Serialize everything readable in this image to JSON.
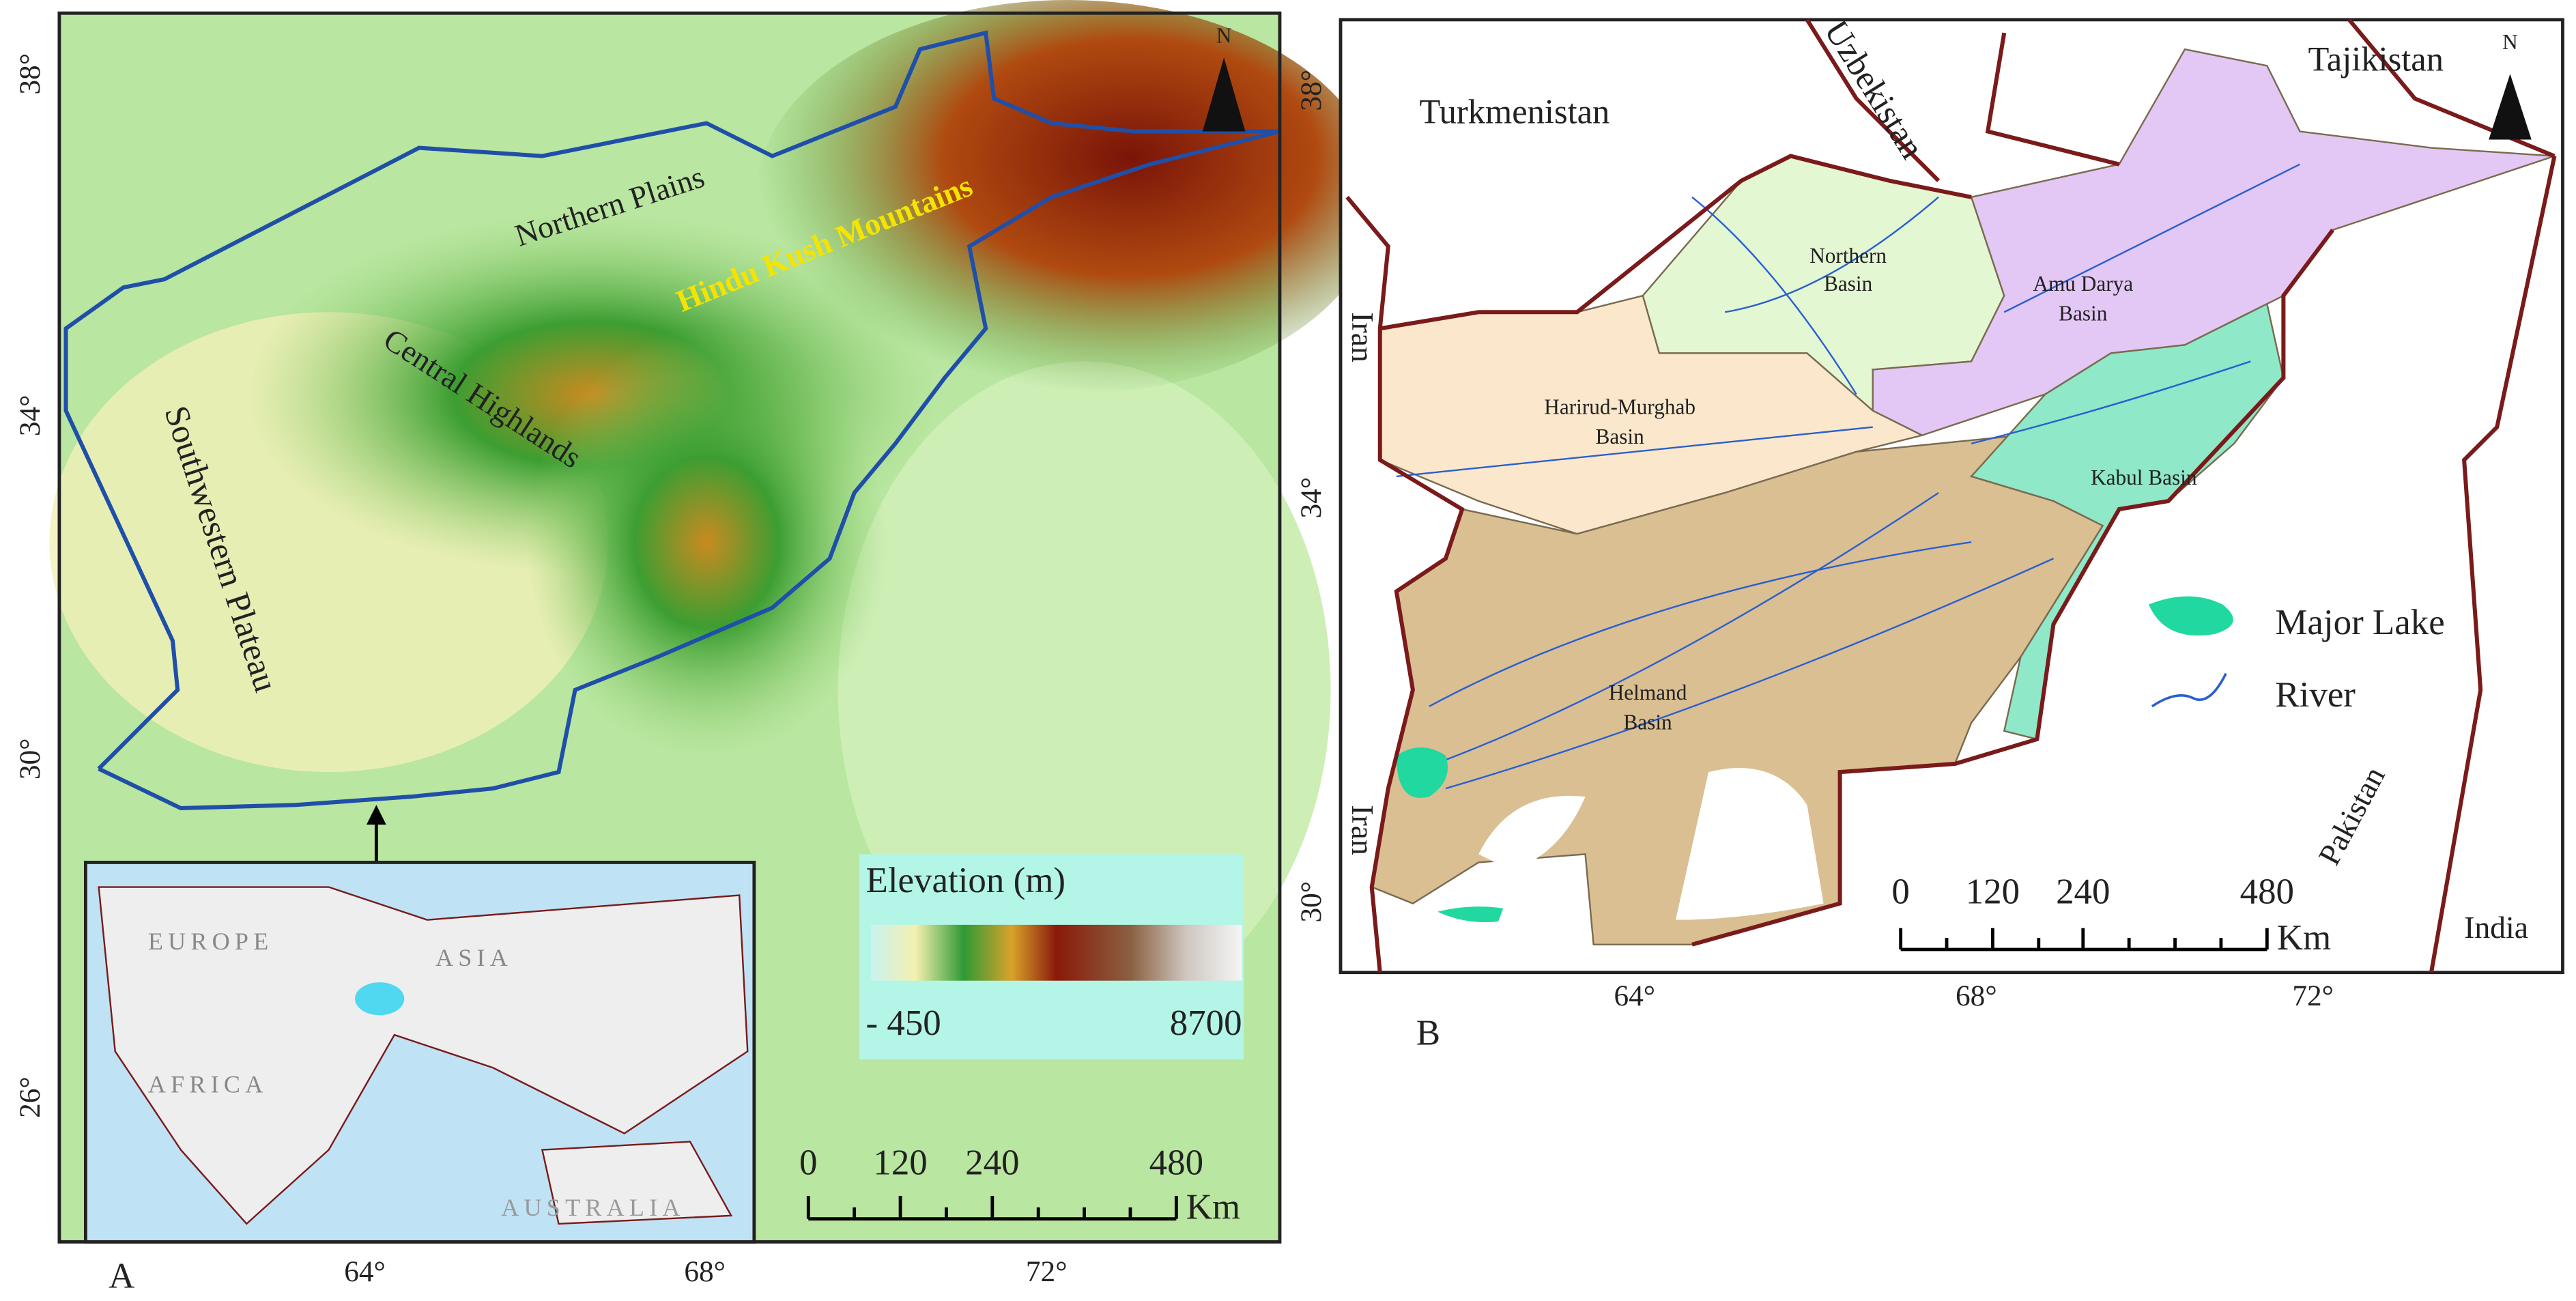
{
  "panel_a": {
    "label": "A",
    "lat_labels": [
      "38°",
      "34°",
      "30°",
      "26°"
    ],
    "lon_labels": [
      "64°",
      "68°",
      "72°"
    ],
    "region_labels": [
      "Northern Plains",
      "Hindu Kush Mountains",
      "Central Highlands",
      "Southwestern Plateau"
    ],
    "north": "N",
    "inset_labels": [
      "EUROPE",
      "ASIA",
      "AFRICA",
      "AUSTRALIA"
    ],
    "legend": {
      "title": "Elevation (m)",
      "min": "- 450",
      "max": "8700"
    },
    "scale_bar": {
      "ticks": [
        "0",
        "120",
        "240",
        "480"
      ],
      "unit": "Km"
    }
  },
  "panel_b": {
    "label": "B",
    "lat_labels": [
      "38°",
      "34°",
      "30°"
    ],
    "lon_labels": [
      "64°",
      "68°",
      "72°"
    ],
    "north": "N",
    "countries": [
      "Turkmenistan",
      "Uzbekistan",
      "Tajikistan",
      "Iran",
      "Iran",
      "Pakistan",
      "India"
    ],
    "basins": [
      [
        "Northern",
        "Basin"
      ],
      [
        "Amu Darya",
        "Basin"
      ],
      [
        "Harirud-Murghab",
        "Basin"
      ],
      [
        "Kabul Basin"
      ],
      [
        "Helmand",
        "Basin"
      ]
    ],
    "legend": [
      "Major Lake",
      "River"
    ],
    "scale_bar": {
      "ticks": [
        "0",
        "120",
        "240",
        "480"
      ],
      "unit": "Km"
    }
  }
}
